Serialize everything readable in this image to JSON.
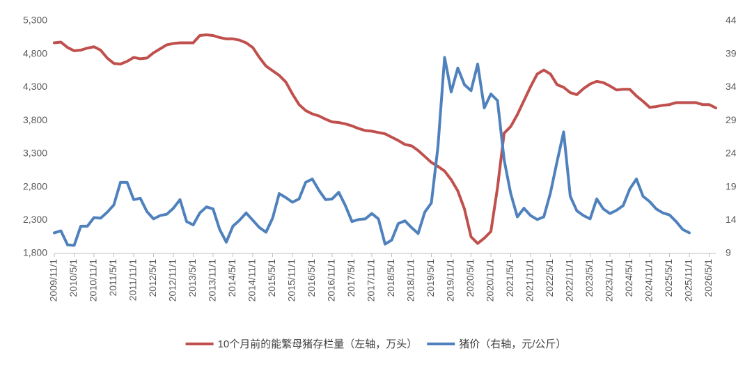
{
  "chart_data": {
    "type": "line",
    "categories": [
      "2009/11/1",
      null,
      null,
      "2010/5/1",
      null,
      null,
      "2010/11/1",
      null,
      null,
      "2011/5/1",
      null,
      null,
      "2011/11/1",
      null,
      null,
      "2012/5/1",
      null,
      null,
      "2012/11/1",
      null,
      null,
      "2013/5/1",
      null,
      null,
      "2013/11/1",
      null,
      null,
      "2014/5/1",
      null,
      null,
      "2014/11/1",
      null,
      null,
      "2015/5/1",
      null,
      null,
      "2015/11/1",
      null,
      null,
      "2016/5/1",
      null,
      null,
      "2016/11/1",
      null,
      null,
      "2017/5/1",
      null,
      null,
      "2017/11/1",
      null,
      null,
      "2018/5/1",
      null,
      null,
      "2018/11/1",
      null,
      null,
      "2019/5/1",
      null,
      null,
      "2019/11/1",
      null,
      null,
      "2020/5/1",
      null,
      null,
      "2020/11/1",
      null,
      null,
      "2021/5/1",
      null,
      null,
      "2021/11/1",
      null,
      null,
      "2022/5/1",
      null,
      null,
      "2022/11/1",
      null,
      null,
      "2023/5/1",
      null,
      null,
      "2023/11/1",
      null,
      null,
      "2024/5/1",
      null,
      null,
      "2024/11/1",
      null,
      null,
      "2025/5/1",
      null,
      null,
      "2025/11/1",
      null,
      null,
      "2026/5/1",
      null
    ],
    "series": [
      {
        "name": "10个月前的能繁母猪存栏量（左轴，万头）",
        "color": "#c0504d",
        "axis": "y",
        "values": [
          4970,
          4980,
          4900,
          4850,
          4860,
          4890,
          4910,
          4860,
          4740,
          4660,
          4650,
          4690,
          4750,
          4730,
          4740,
          4820,
          4880,
          4940,
          4960,
          4970,
          4970,
          4970,
          5080,
          5090,
          5080,
          5050,
          5030,
          5030,
          5010,
          4970,
          4900,
          4750,
          4620,
          4550,
          4480,
          4380,
          4200,
          4040,
          3950,
          3900,
          3870,
          3820,
          3780,
          3770,
          3750,
          3720,
          3680,
          3650,
          3640,
          3620,
          3600,
          3550,
          3500,
          3440,
          3420,
          3350,
          3260,
          3170,
          3110,
          3040,
          2910,
          2740,
          2470,
          2050,
          1950,
          2030,
          2130,
          2790,
          3610,
          3710,
          3890,
          4100,
          4310,
          4500,
          4560,
          4500,
          4340,
          4300,
          4220,
          4190,
          4280,
          4350,
          4390,
          4370,
          4320,
          4260,
          4270,
          4270,
          4170,
          4090,
          4000,
          4010,
          4030,
          4040,
          4070,
          4070,
          4070,
          4070,
          4040,
          4040,
          3990
        ]
      },
      {
        "name": "猪价（右轴，元/公斤）",
        "color": "#4f81bd",
        "axis": "y2",
        "values": [
          12.1,
          12.4,
          10.3,
          10.2,
          13.1,
          13.1,
          14.4,
          14.3,
          15.2,
          16.3,
          19.7,
          19.7,
          17.1,
          17.3,
          15.3,
          14.2,
          14.7,
          14.9,
          15.8,
          17.1,
          13.8,
          13.3,
          15.1,
          16.0,
          15.7,
          12.6,
          10.7,
          13.1,
          14.0,
          15.1,
          14.0,
          12.9,
          12.2,
          14.3,
          18.0,
          17.4,
          16.7,
          17.2,
          19.7,
          20.2,
          18.5,
          17.1,
          17.2,
          18.2,
          16.2,
          13.8,
          14.1,
          14.2,
          15.0,
          14.2,
          10.4,
          11.0,
          13.5,
          13.9,
          12.9,
          12.0,
          15.2,
          16.6,
          25.1,
          38.5,
          33.3,
          36.9,
          34.4,
          33.5,
          37.5,
          30.9,
          33.0,
          32.0,
          23.1,
          18.0,
          14.5,
          15.8,
          14.7,
          14.1,
          14.5,
          18.1,
          22.8,
          27.3,
          17.6,
          15.4,
          14.7,
          14.2,
          17.2,
          15.7,
          15.0,
          15.5,
          16.2,
          18.7,
          20.2,
          17.6,
          16.8,
          15.7,
          15.1,
          14.8,
          13.8,
          12.6,
          12.1,
          null,
          null,
          null,
          null
        ]
      }
    ],
    "ylim": [
      1800,
      5300
    ],
    "yticks": [
      {
        "value": 1800,
        "label": "1,800"
      },
      {
        "value": 2300,
        "label": "2,300"
      },
      {
        "value": 2800,
        "label": "2,800"
      },
      {
        "value": 3300,
        "label": "3,300"
      },
      {
        "value": 3800,
        "label": "3,800"
      },
      {
        "value": 4300,
        "label": "4,300"
      },
      {
        "value": 4800,
        "label": "4,800"
      },
      {
        "value": 5300,
        "label": "5,300"
      }
    ],
    "y2lim": [
      9,
      44
    ],
    "y2ticks": [
      9,
      14,
      19,
      24,
      29,
      34,
      39,
      44
    ],
    "grid": false,
    "legend": "bottom"
  }
}
